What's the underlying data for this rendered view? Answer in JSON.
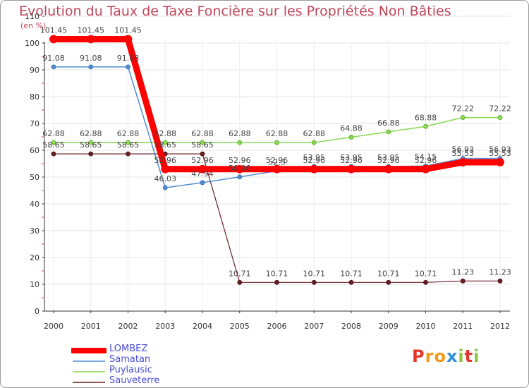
{
  "header": {
    "title": "Evolution du Taux de Taxe Foncière sur les Propriétés Non Bâties",
    "subtitle": "(en %)"
  },
  "logo": {
    "text": "Proxiti",
    "letters": [
      "P",
      "r",
      "o",
      "x",
      "i",
      "t",
      "i"
    ],
    "colors": [
      "#e8352a",
      "#f39a1e",
      "#f39a1e",
      "#2f8fd8",
      "#8bc53f",
      "#e8352a",
      "#8bc53f"
    ]
  },
  "chart_data": {
    "type": "line",
    "title": "Evolution du Taux de Taxe Foncière sur les Propriétés Non Bâties",
    "ylabel": "(en %)",
    "xlabel": "",
    "ylim": [
      0,
      110
    ],
    "yticks": [
      0,
      10,
      20,
      30,
      40,
      50,
      60,
      70,
      80,
      90,
      100,
      110
    ],
    "categories": [
      "2000",
      "2001",
      "2002",
      "2003",
      "2004",
      "2005",
      "2006",
      "2007",
      "2008",
      "2009",
      "2010",
      "2011",
      "2012"
    ],
    "grid": true,
    "legend_position": "bottom-left",
    "series": [
      {
        "name": "LOMBEZ",
        "color": "#ff0000",
        "values": [
          101.45,
          101.45,
          101.45,
          52.96,
          52.96,
          52.96,
          52.96,
          52.96,
          52.96,
          52.96,
          52.96,
          55.53,
          55.53
        ],
        "labels": [
          "101.45",
          "101.45",
          "101.45",
          "52.96",
          "52.96",
          "52.96",
          "52.96",
          "52.96",
          "52.96",
          "52.96",
          "52.96",
          "55.53",
          "55.53"
        ]
      },
      {
        "name": "Samatan",
        "color": "#4f8fd0",
        "values": [
          91.08,
          91.08,
          91.08,
          46.03,
          47.94,
          50.06,
          52.3,
          53.95,
          53.95,
          53.95,
          54.15,
          56.93,
          56.93
        ],
        "labels": [
          "91.08",
          "91.08",
          "91.08",
          "46.03",
          "47.94",
          "50.06",
          "52.3",
          "53.95",
          "53.95",
          "53.95",
          "54.15",
          "56.93",
          "56.93"
        ]
      },
      {
        "name": "Puylausic",
        "color": "#88d850",
        "values": [
          62.88,
          62.88,
          62.88,
          62.88,
          62.88,
          62.88,
          62.88,
          62.88,
          64.88,
          66.88,
          68.88,
          72.22,
          72.22
        ],
        "labels": [
          "62.88",
          "62.88",
          "62.88",
          "62.88",
          "62.88",
          "62.88",
          "62.88",
          "62.88",
          "64.88",
          "66.88",
          "68.88",
          "72.22",
          "72.22"
        ]
      },
      {
        "name": "Sauveterre",
        "color": "#6b1f25",
        "values": [
          58.65,
          58.65,
          58.65,
          58.65,
          58.65,
          10.71,
          10.71,
          10.71,
          10.71,
          10.71,
          10.71,
          11.23,
          11.23
        ],
        "labels": [
          "58.65",
          "58.65",
          "58.65",
          "58.65",
          "58.65",
          "10.71",
          "10.71",
          "10.71",
          "10.71",
          "10.71",
          "10.71",
          "11.23",
          "11.23"
        ]
      }
    ]
  }
}
